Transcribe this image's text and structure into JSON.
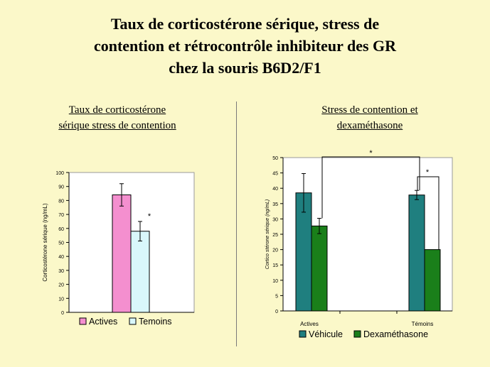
{
  "slide": {
    "title_lines": [
      "Taux de corticostérone sérique, stress de",
      "contention et rétrocontrôle inhibiteur des GR",
      "chez la souris B6D2/F1"
    ]
  },
  "chart_data": [
    {
      "type": "bar",
      "title_lines": [
        "Taux de corticostérone",
        "sérique stress de contention"
      ],
      "ylabel": "Corticostérone sérique (ng/mL)",
      "ylim": [
        0,
        100
      ],
      "yticks": [
        0,
        10,
        20,
        30,
        40,
        50,
        60,
        70,
        80,
        90,
        100
      ],
      "categories": [
        ""
      ],
      "series": [
        {
          "name": "Actives",
          "values": [
            84
          ],
          "errors": [
            8
          ],
          "color": "#f48fcf"
        },
        {
          "name": "Temoins",
          "values": [
            58
          ],
          "errors": [
            7
          ],
          "color": "#d9f7fb"
        }
      ],
      "annotations": [
        {
          "text": "*",
          "near": "Temoins"
        }
      ],
      "legend": "bottom"
    },
    {
      "type": "bar",
      "title_lines": [
        "Stress de contention et",
        "dexaméthasone"
      ],
      "ylabel": "Cortico stérone sérique (ng/mL)",
      "ylim": [
        0,
        50
      ],
      "yticks": [
        0,
        5,
        10,
        15,
        20,
        25,
        30,
        35,
        40,
        45,
        50
      ],
      "categories": [
        "Actives",
        "Témoins"
      ],
      "series": [
        {
          "name": "Véhicule",
          "values": [
            38.5,
            37.8
          ],
          "errors": [
            6.3,
            1.5
          ],
          "color": "#1f7f7f"
        },
        {
          "name": "Dexaméthasone",
          "values": [
            27.7,
            20
          ],
          "errors": [
            2.5,
            0
          ],
          "color": "#1a7f1a"
        }
      ],
      "annotations": [
        {
          "text": "*",
          "between": "Actives Dexaméthasone / Témoins Véhicule"
        },
        {
          "text": "*",
          "between": "Témoins Véhicule / Témoins Dexaméthasone"
        }
      ],
      "legend": "bottom"
    }
  ]
}
